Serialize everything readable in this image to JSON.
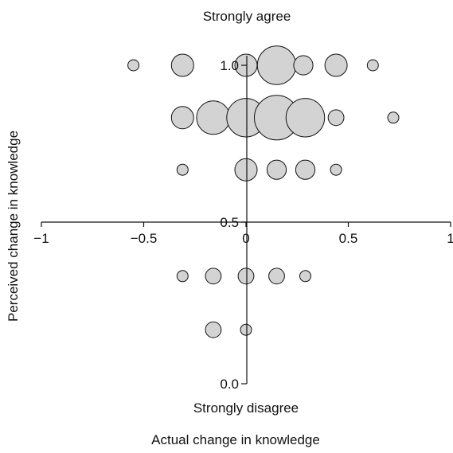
{
  "chart_data": {
    "type": "scatter",
    "title": "",
    "xlabel": "Actual change in knowledge",
    "ylabel": "Perceived change in knowledge",
    "top_label": "Strongly agree",
    "bottom_label": "Strongly disagree",
    "xlim": [
      -1,
      1
    ],
    "ylim": [
      0,
      1
    ],
    "x_ticks": [
      {
        "value": -1,
        "label": "−1"
      },
      {
        "value": -0.5,
        "label": "−0.5"
      },
      {
        "value": 0,
        "label": "0"
      },
      {
        "value": 0.5,
        "label": "0.5"
      },
      {
        "value": 1,
        "label": "1"
      }
    ],
    "y_ticks": [
      {
        "value": 0.0,
        "label": "0.0"
      },
      {
        "value": 0.5,
        "label": "0.5"
      },
      {
        "value": 1.0,
        "label": "1.0"
      }
    ],
    "grid": false,
    "legend": "none",
    "marker_color": "#d3d3d3",
    "marker_edge_color": "#111111",
    "points": [
      {
        "x": -0.55,
        "y": 1.0,
        "size": 1
      },
      {
        "x": -0.31,
        "y": 1.0,
        "size": 4
      },
      {
        "x": 0.0,
        "y": 1.0,
        "size": 4
      },
      {
        "x": 0.15,
        "y": 1.0,
        "size": 12
      },
      {
        "x": 0.28,
        "y": 1.0,
        "size": 3
      },
      {
        "x": 0.44,
        "y": 1.0,
        "size": 4
      },
      {
        "x": 0.62,
        "y": 1.0,
        "size": 1
      },
      {
        "x": -0.31,
        "y": 0.833,
        "size": 4
      },
      {
        "x": -0.16,
        "y": 0.833,
        "size": 9
      },
      {
        "x": 0.0,
        "y": 0.833,
        "size": 12
      },
      {
        "x": 0.15,
        "y": 0.833,
        "size": 16
      },
      {
        "x": 0.29,
        "y": 0.833,
        "size": 12
      },
      {
        "x": 0.44,
        "y": 0.833,
        "size": 2
      },
      {
        "x": 0.72,
        "y": 0.833,
        "size": 1
      },
      {
        "x": -0.31,
        "y": 0.667,
        "size": 1
      },
      {
        "x": 0.0,
        "y": 0.667,
        "size": 4
      },
      {
        "x": 0.15,
        "y": 0.667,
        "size": 3
      },
      {
        "x": 0.29,
        "y": 0.667,
        "size": 3
      },
      {
        "x": 0.44,
        "y": 0.667,
        "size": 1
      },
      {
        "x": -0.31,
        "y": 0.333,
        "size": 1
      },
      {
        "x": -0.16,
        "y": 0.333,
        "size": 2
      },
      {
        "x": 0.0,
        "y": 0.333,
        "size": 2
      },
      {
        "x": 0.15,
        "y": 0.333,
        "size": 2
      },
      {
        "x": 0.29,
        "y": 0.333,
        "size": 1
      },
      {
        "x": -0.16,
        "y": 0.167,
        "size": 2
      },
      {
        "x": 0.0,
        "y": 0.167,
        "size": 1
      }
    ]
  }
}
